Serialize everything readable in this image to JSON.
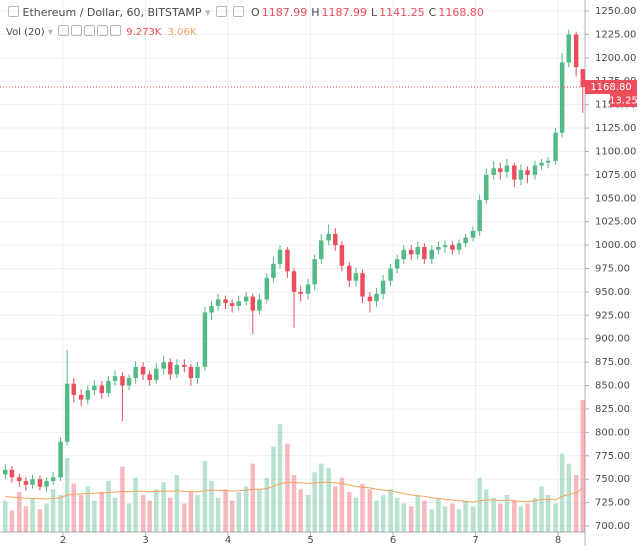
{
  "chart_data": {
    "type": "candlestick",
    "title": "Ethereum / Dollar, 60, BITSTAMP",
    "legend": {
      "labels": [
        "O",
        "H",
        "L",
        "C"
      ],
      "values": [
        1187.99,
        1187.99,
        1141.25,
        {
          "value": 1168.8,
          "label": "1168.80"
        }
      ]
    },
    "volume_label": "Vol (20)",
    "volume_values": [
      {
        "value": 9273,
        "label": "9.273K"
      },
      {
        "value": 3060,
        "label": "3.06K"
      }
    ],
    "countdown": "13.25",
    "up_color": "#53b987",
    "down_color": "#eb4d5c",
    "ma_color": "#f6a15c",
    "grid": true,
    "xlim": [
      1.236,
      8.327
    ],
    "xticks": [
      2,
      3,
      4,
      5,
      6,
      7,
      8
    ],
    "ylim": [
      693.6,
      1261.75
    ],
    "yticks": [
      {
        "value": 700,
        "label": "700.00"
      },
      {
        "value": 725,
        "label": "725.00"
      },
      {
        "value": 750,
        "label": "750.00"
      },
      {
        "value": 775,
        "label": "775.00"
      },
      {
        "value": 800,
        "label": "800.00"
      },
      {
        "value": 825,
        "label": "825.00"
      },
      {
        "value": 850,
        "label": "850.00"
      },
      {
        "value": 875,
        "label": "875.00"
      },
      {
        "value": 900,
        "label": "900.00"
      },
      {
        "value": 925,
        "label": "925.00"
      },
      {
        "value": 950,
        "label": "950.00"
      },
      {
        "value": 975,
        "label": "975.00"
      },
      {
        "value": 1000,
        "label": "1000.00"
      },
      {
        "value": 1025,
        "label": "1025.00"
      },
      {
        "value": 1050,
        "label": "1050.00"
      },
      {
        "value": 1075,
        "label": "1075.00"
      },
      {
        "value": 1100,
        "label": "1100.00"
      },
      {
        "value": 1125,
        "label": "1125.00"
      },
      {
        "value": 1150,
        "label": "1150.00"
      },
      {
        "value": 1175,
        "label": "1175.00"
      },
      {
        "value": 1200,
        "label": "1200.00"
      },
      {
        "value": 1225,
        "label": "1225.00"
      },
      {
        "value": 1250,
        "label": "1250.00"
      }
    ],
    "x": [
      1.3,
      1.38,
      1.47,
      1.55,
      1.63,
      1.72,
      1.8,
      1.88,
      1.97,
      2.05,
      2.13,
      2.22,
      2.3,
      2.38,
      2.47,
      2.55,
      2.63,
      2.72,
      2.8,
      2.88,
      2.97,
      3.05,
      3.13,
      3.22,
      3.3,
      3.38,
      3.47,
      3.55,
      3.63,
      3.72,
      3.8,
      3.88,
      3.97,
      4.05,
      4.13,
      4.22,
      4.3,
      4.38,
      4.47,
      4.55,
      4.63,
      4.72,
      4.8,
      4.88,
      4.97,
      5.05,
      5.13,
      5.22,
      5.3,
      5.38,
      5.47,
      5.55,
      5.63,
      5.72,
      5.8,
      5.88,
      5.97,
      6.05,
      6.13,
      6.22,
      6.3,
      6.38,
      6.47,
      6.55,
      6.63,
      6.72,
      6.8,
      6.88,
      6.97,
      7.05,
      7.13,
      7.22,
      7.3,
      7.38,
      7.47,
      7.55,
      7.63,
      7.72,
      7.8,
      7.88,
      7.97,
      8.05,
      8.13,
      8.22,
      8.3
    ],
    "open": [
      755,
      760,
      752,
      748,
      744,
      750,
      742,
      748,
      752,
      790,
      852,
      840,
      835,
      845,
      850,
      842,
      855,
      860,
      850,
      858,
      870,
      862,
      856,
      868,
      875,
      862,
      872,
      870,
      858,
      870,
      928,
      935,
      942,
      938,
      935,
      940,
      945,
      930,
      942,
      965,
      980,
      995,
      972,
      950,
      948,
      958,
      985,
      1005,
      1012,
      1000,
      978,
      962,
      970,
      945,
      940,
      948,
      962,
      975,
      985,
      995,
      990,
      998,
      985,
      995,
      998,
      1000,
      995,
      1002,
      1008,
      1015,
      1048,
      1075,
      1082,
      1078,
      1085,
      1070,
      1080,
      1075,
      1085,
      1088,
      1090,
      1120,
      1195,
      1225,
      1187.99
    ],
    "high": [
      766,
      764,
      756,
      752,
      755,
      754,
      752,
      758,
      795,
      888,
      858,
      846,
      850,
      856,
      855,
      860,
      866,
      864,
      862,
      876,
      875,
      866,
      874,
      882,
      879,
      878,
      878,
      873,
      875,
      934,
      940,
      948,
      946,
      942,
      946,
      950,
      948,
      948,
      970,
      988,
      1000,
      998,
      975,
      956,
      964,
      990,
      1012,
      1022,
      1018,
      1004,
      982,
      976,
      974,
      950,
      954,
      968,
      980,
      990,
      1000,
      1000,
      1004,
      1002,
      1000,
      1004,
      1005,
      1004,
      1006,
      1012,
      1020,
      1054,
      1082,
      1090,
      1088,
      1092,
      1088,
      1086,
      1084,
      1090,
      1092,
      1094,
      1125,
      1205,
      1230,
      1228,
      1187.99
    ],
    "low": [
      750,
      746,
      742,
      738,
      740,
      738,
      737,
      744,
      748,
      786,
      832,
      828,
      830,
      840,
      836,
      838,
      850,
      812,
      845,
      852,
      856,
      850,
      852,
      862,
      856,
      858,
      864,
      850,
      852,
      866,
      920,
      930,
      932,
      928,
      930,
      936,
      905,
      926,
      938,
      960,
      975,
      965,
      912,
      940,
      942,
      952,
      980,
      1000,
      994,
      972,
      955,
      956,
      938,
      928,
      934,
      942,
      956,
      970,
      980,
      984,
      985,
      980,
      980,
      990,
      992,
      990,
      990,
      998,
      1004,
      1010,
      1044,
      1070,
      1070,
      1072,
      1062,
      1064,
      1066,
      1070,
      1080,
      1082,
      1086,
      1115,
      1190,
      1180,
      1141.25
    ],
    "close": [
      760,
      752,
      748,
      744,
      750,
      742,
      748,
      752,
      790,
      852,
      840,
      835,
      845,
      850,
      842,
      855,
      860,
      850,
      858,
      870,
      862,
      856,
      868,
      875,
      862,
      872,
      870,
      858,
      870,
      928,
      935,
      942,
      938,
      935,
      940,
      945,
      930,
      942,
      965,
      980,
      995,
      972,
      950,
      948,
      958,
      985,
      1005,
      1012,
      1000,
      978,
      962,
      970,
      945,
      940,
      948,
      962,
      975,
      985,
      995,
      990,
      998,
      985,
      995,
      998,
      1000,
      995,
      1002,
      1008,
      1015,
      1048,
      1075,
      1082,
      1078,
      1085,
      1070,
      1080,
      1075,
      1085,
      1088,
      1090,
      1120,
      1195,
      1225,
      1190,
      1168.8
    ],
    "volume": [
      2200,
      1500,
      2800,
      1800,
      2400,
      1600,
      2000,
      3000,
      2600,
      5200,
      3400,
      2600,
      3200,
      2200,
      2800,
      3600,
      2400,
      4600,
      2000,
      3800,
      2600,
      2200,
      3000,
      3500,
      2400,
      4000,
      2000,
      2800,
      2600,
      5000,
      3600,
      2400,
      3000,
      2200,
      2800,
      3200,
      4800,
      3000,
      3800,
      6000,
      7600,
      6200,
      4000,
      3000,
      2600,
      4200,
      4800,
      4500,
      3200,
      3800,
      2800,
      2400,
      3400,
      3000,
      2200,
      2600,
      3000,
      2400,
      2000,
      1800,
      2600,
      2200,
      1600,
      2400,
      1800,
      2000,
      1600,
      2200,
      1800,
      3800,
      3000,
      2400,
      2000,
      2600,
      2200,
      1800,
      2000,
      2400,
      3200,
      2600,
      2000,
      5500,
      4800,
      4000,
      9273
    ],
    "volume_ma": [
      2500,
      2450,
      2400,
      2380,
      2350,
      2330,
      2320,
      2350,
      2400,
      2600,
      2650,
      2680,
      2700,
      2720,
      2750,
      2780,
      2800,
      2850,
      2820,
      2850,
      2860,
      2840,
      2850,
      2880,
      2860,
      2880,
      2850,
      2840,
      2830,
      2900,
      2950,
      2920,
      2900,
      2880,
      2900,
      2950,
      3000,
      3000,
      3050,
      3200,
      3400,
      3500,
      3500,
      3450,
      3400,
      3450,
      3500,
      3500,
      3450,
      3400,
      3300,
      3200,
      3150,
      3100,
      3000,
      2950,
      2900,
      2800,
      2700,
      2600,
      2550,
      2500,
      2400,
      2350,
      2300,
      2250,
      2200,
      2150,
      2100,
      2200,
      2250,
      2250,
      2200,
      2250,
      2200,
      2150,
      2150,
      2200,
      2300,
      2300,
      2250,
      2500,
      2650,
      2750,
      3060
    ]
  }
}
